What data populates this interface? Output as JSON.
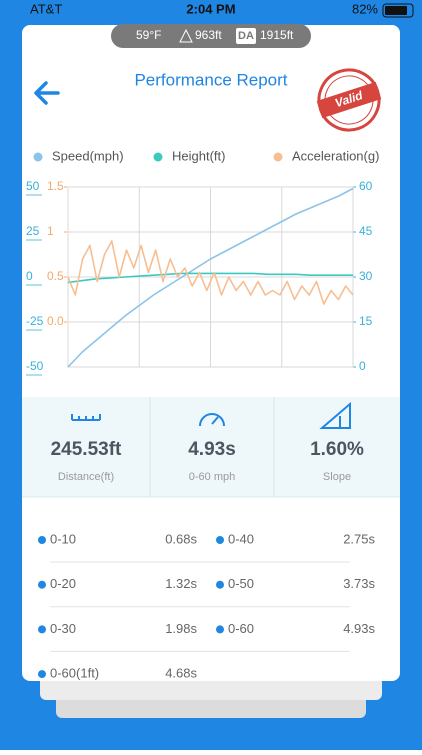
{
  "status_bar": {
    "carrier": "AT&T",
    "time": "2:04 PM",
    "battery": "82%"
  },
  "conditions": {
    "temperature": "59°F",
    "elevation": "963ft",
    "da_badge": "DA",
    "density_altitude": "1915ft"
  },
  "header": {
    "title": "Performance Report",
    "stamp": "Valid"
  },
  "chart_data": {
    "type": "line",
    "ylim": [
      -50,
      50
    ],
    "yticks": [
      50,
      25,
      0,
      -25,
      -50
    ],
    "y2lim": [
      0,
      60
    ],
    "y2ticks": [
      60,
      45,
      30,
      15,
      0
    ],
    "y3lim": [
      -0.5,
      1.5
    ],
    "y3ticks": [
      1.5,
      1,
      0.5,
      {
        "value": 0,
        "label": "0.0"
      }
    ],
    "grid": true,
    "series": [
      {
        "name": "Speed(mph)",
        "color": "#8cc3ea",
        "axis": "y2",
        "values": [
          0,
          5,
          9,
          13,
          17,
          20.5,
          24,
          27,
          30,
          33,
          36,
          38.5,
          41,
          43.5,
          46,
          48.5,
          51,
          53,
          55,
          57,
          59.5
        ]
      },
      {
        "name": "Height(ft)",
        "color": "#3cc9c0",
        "axis": "y",
        "values": [
          -3,
          -2,
          -1,
          -0.5,
          0,
          0.5,
          1,
          1.5,
          2,
          2,
          2,
          2,
          2,
          2,
          1.5,
          1.5,
          1.5,
          1,
          1,
          1,
          1
        ]
      },
      {
        "name": "Acceleration(g)",
        "color": "#f7be92",
        "axis": "y3",
        "values": [
          0.5,
          0.3,
          0.7,
          0.85,
          0.45,
          0.75,
          0.9,
          0.5,
          0.8,
          0.6,
          0.85,
          0.55,
          0.8,
          0.45,
          0.7,
          0.5,
          0.6,
          0.4,
          0.55,
          0.35,
          0.55,
          0.3,
          0.5,
          0.35,
          0.45,
          0.3,
          0.45,
          0.3,
          0.35,
          0.3,
          0.45,
          0.25,
          0.4,
          0.3,
          0.45,
          0.2,
          0.35,
          0.25,
          0.4,
          0.3
        ]
      }
    ]
  },
  "stats": [
    {
      "value": "245.53ft",
      "label": "Distance(ft)"
    },
    {
      "value": "4.93s",
      "label": "0-60 mph"
    },
    {
      "value": "1.60%",
      "label": "Slope"
    }
  ],
  "splits": [
    {
      "label": "0-10",
      "time": "0.68s"
    },
    {
      "label": "0-40",
      "time": "2.75s"
    },
    {
      "label": "0-20",
      "time": "1.32s"
    },
    {
      "label": "0-50",
      "time": "3.73s"
    },
    {
      "label": "0-30",
      "time": "1.98s"
    },
    {
      "label": "0-60",
      "time": "4.93s"
    },
    {
      "label": "0-60(1ft)",
      "time": "4.68s"
    }
  ]
}
